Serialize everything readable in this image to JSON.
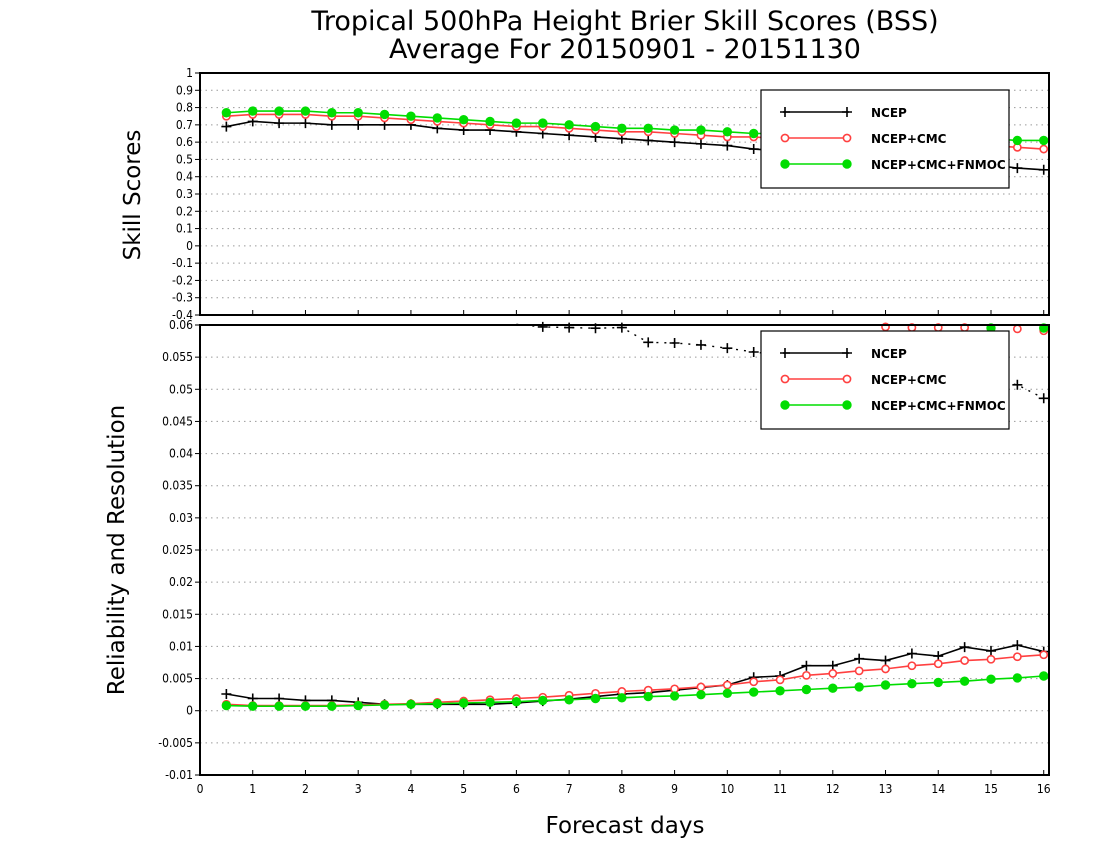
{
  "title_line1": "Tropical 500hPa Height Brier Skill Scores (BSS)",
  "title_line2": "Average For 20150901 - 20151130",
  "colors": {
    "ncep": "#000000",
    "ncep_cmc": "#ff4040",
    "ncep_cmc_fnmoc": "#00dd00",
    "grid": "#9a9a9a"
  },
  "chart_data": [
    {
      "type": "line",
      "ylabel": "Skill Scores",
      "xlabel": "",
      "xlim": [
        0,
        16.1
      ],
      "ylim": [
        -0.4,
        1
      ],
      "yticks": [
        "-0.4",
        "-0.3",
        "-0.2",
        "-0.1",
        "0",
        "0.1",
        "0.2",
        "0.3",
        "0.4",
        "0.5",
        "0.6",
        "0.7",
        "0.8",
        "0.9",
        "1"
      ],
      "grid": true,
      "legend_position": "top-right",
      "x": [
        0.5,
        1,
        1.5,
        2,
        2.5,
        3,
        3.5,
        4,
        4.5,
        5,
        5.5,
        6,
        6.5,
        7,
        7.5,
        8,
        8.5,
        9,
        9.5,
        10,
        10.5,
        11,
        11.5,
        12,
        12.5,
        13,
        13.5,
        14,
        14.5,
        15,
        15.5,
        16
      ],
      "series": [
        {
          "name": "NCEP",
          "marker": "plus",
          "values": [
            0.69,
            0.72,
            0.71,
            0.71,
            0.7,
            0.7,
            0.7,
            0.7,
            0.68,
            0.67,
            0.67,
            0.66,
            0.65,
            0.64,
            0.63,
            0.62,
            0.61,
            0.6,
            0.59,
            0.58,
            0.56,
            0.55,
            0.54,
            0.53,
            0.51,
            0.5,
            0.49,
            0.48,
            0.47,
            0.47,
            0.45,
            0.44
          ]
        },
        {
          "name": "NCEP+CMC",
          "marker": "open-circle",
          "values": [
            0.75,
            0.76,
            0.76,
            0.76,
            0.75,
            0.75,
            0.74,
            0.73,
            0.72,
            0.71,
            0.7,
            0.69,
            0.69,
            0.68,
            0.67,
            0.66,
            0.66,
            0.65,
            0.64,
            0.63,
            0.63,
            0.62,
            0.61,
            0.61,
            0.6,
            0.6,
            0.59,
            0.58,
            0.58,
            0.58,
            0.57,
            0.56
          ]
        },
        {
          "name": "NCEP+CMC+FNMOC",
          "marker": "filled-circle",
          "values": [
            0.77,
            0.78,
            0.78,
            0.78,
            0.77,
            0.77,
            0.76,
            0.75,
            0.74,
            0.73,
            0.72,
            0.71,
            0.71,
            0.7,
            0.69,
            0.68,
            0.68,
            0.67,
            0.67,
            0.66,
            0.65,
            0.65,
            0.65,
            0.64,
            0.64,
            0.63,
            0.63,
            0.62,
            0.62,
            0.62,
            0.61,
            0.61
          ]
        }
      ]
    },
    {
      "type": "line",
      "ylabel": "Reliability and Resolution",
      "xlabel": "Forecast days",
      "xlim": [
        0,
        16.1
      ],
      "ylim": [
        -0.01,
        0.06
      ],
      "yticks": [
        "-0.01",
        "-0.005",
        "0",
        "0.005",
        "0.01",
        "0.015",
        "0.02",
        "0.025",
        "0.03",
        "0.035",
        "0.04",
        "0.045",
        "0.05",
        "0.055",
        "0.06"
      ],
      "xticks": [
        "0",
        "1",
        "2",
        "3",
        "4",
        "5",
        "6",
        "7",
        "8",
        "9",
        "10",
        "11",
        "12",
        "13",
        "14",
        "15",
        "16"
      ],
      "grid": true,
      "legend_position": "top-right",
      "x": [
        0.5,
        1,
        1.5,
        2,
        2.5,
        3,
        3.5,
        4,
        4.5,
        5,
        5.5,
        6,
        6.5,
        7,
        7.5,
        8,
        8.5,
        9,
        9.5,
        10,
        10.5,
        11,
        11.5,
        12,
        12.5,
        13,
        13.5,
        14,
        14.5,
        15,
        15.5,
        16
      ],
      "series": [
        {
          "name": "NCEP",
          "marker": "plus",
          "values": [
            0.0026,
            0.0019,
            0.0019,
            0.0016,
            0.0016,
            0.0013,
            0.001,
            0.001,
            0.001,
            0.001,
            0.001,
            0.0012,
            0.0015,
            0.0018,
            0.0022,
            0.0026,
            0.0028,
            0.0032,
            0.0036,
            0.004,
            0.0052,
            0.0054,
            0.007,
            0.007,
            0.0081,
            0.0078,
            0.0089,
            0.0085,
            0.0099,
            0.0093,
            0.0102,
            0.0092
          ]
        },
        {
          "name": "NCEP+CMC",
          "marker": "open-circle",
          "values": [
            0.001,
            0.0008,
            0.0008,
            0.0008,
            0.0008,
            0.0009,
            0.001,
            0.0011,
            0.0013,
            0.0015,
            0.0017,
            0.0019,
            0.0021,
            0.0024,
            0.0027,
            0.003,
            0.0032,
            0.0034,
            0.0037,
            0.004,
            0.0045,
            0.0048,
            0.0055,
            0.0058,
            0.0062,
            0.0065,
            0.007,
            0.0073,
            0.0078,
            0.008,
            0.0084,
            0.0087
          ]
        },
        {
          "name": "NCEP+CMC+FNMOC",
          "marker": "filled-circle",
          "values": [
            0.0008,
            0.0007,
            0.0007,
            0.0007,
            0.0007,
            0.0008,
            0.0009,
            0.001,
            0.0011,
            0.0012,
            0.0013,
            0.0014,
            0.0016,
            0.0017,
            0.0019,
            0.002,
            0.0022,
            0.0023,
            0.0025,
            0.0027,
            0.0029,
            0.0031,
            0.0033,
            0.0035,
            0.0037,
            0.004,
            0.0042,
            0.0044,
            0.0046,
            0.0049,
            0.0051,
            0.0054
          ]
        }
      ],
      "dotted_series": {
        "name": "NCEP",
        "x": [
          6,
          6.5,
          7,
          7.5,
          8,
          8.5,
          9,
          9.5,
          10,
          10.5,
          15,
          15.5,
          16
        ],
        "values": [
          0.0601,
          0.0597,
          0.0596,
          0.0595,
          0.0596,
          0.0573,
          0.0572,
          0.0569,
          0.0564,
          0.0558,
          0.0514,
          0.0507,
          0.0486
        ]
      },
      "dotted_circles": {
        "name": "NCEP+CMC",
        "x": [
          13,
          13.5,
          14,
          14.5,
          15.5,
          16
        ],
        "values": [
          0.0597,
          0.0596,
          0.0596,
          0.0596,
          0.0594,
          0.0591
        ]
      },
      "dotted_filled": {
        "name": "NCEP+CMC+FNMOC",
        "x": [
          15,
          16
        ],
        "values": [
          0.0598,
          0.0598
        ]
      }
    }
  ]
}
